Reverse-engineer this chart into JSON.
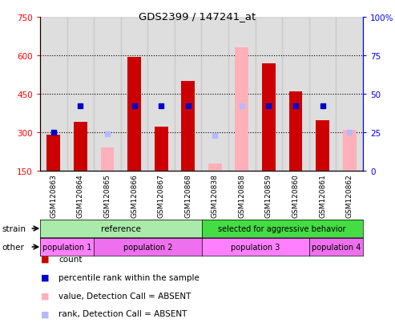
{
  "title": "GDS2399 / 147241_at",
  "samples": [
    "GSM120863",
    "GSM120864",
    "GSM120865",
    "GSM120866",
    "GSM120867",
    "GSM120868",
    "GSM120838",
    "GSM120858",
    "GSM120859",
    "GSM120860",
    "GSM120861",
    "GSM120862"
  ],
  "count_values": [
    292,
    342,
    null,
    595,
    322,
    500,
    null,
    null,
    570,
    460,
    347,
    null
  ],
  "absent_count_values": [
    null,
    null,
    240,
    null,
    null,
    null,
    178,
    630,
    null,
    null,
    null,
    310
  ],
  "percentile_rank": [
    25.0,
    42.0,
    null,
    42.0,
    42.0,
    42.0,
    null,
    null,
    42.0,
    42.0,
    42.0,
    null
  ],
  "absent_rank": [
    null,
    null,
    24.0,
    null,
    null,
    null,
    23.0,
    42.0,
    null,
    null,
    null,
    25.0
  ],
  "ylim_left": [
    150,
    750
  ],
  "ylim_right": [
    0,
    100
  ],
  "yticks_left": [
    150,
    300,
    450,
    600,
    750
  ],
  "yticks_right": [
    0,
    25,
    50,
    75,
    100
  ],
  "bar_width": 0.5,
  "count_color": "#cc0000",
  "absent_count_color": "#ffb0b8",
  "rank_color": "#0000cc",
  "absent_rank_color": "#b8b8ff",
  "col_bg_color": "#c8c8c8",
  "strain_ref_color": "#aaeaaa",
  "strain_sel_color": "#44dd44",
  "pop_color1": "#ff80ff",
  "pop_color2": "#ee70ee",
  "legend_items": [
    {
      "label": "count",
      "color": "#cc0000"
    },
    {
      "label": "percentile rank within the sample",
      "color": "#0000cc"
    },
    {
      "label": "value, Detection Call = ABSENT",
      "color": "#ffb0b8"
    },
    {
      "label": "rank, Detection Call = ABSENT",
      "color": "#b8b8ff"
    }
  ]
}
